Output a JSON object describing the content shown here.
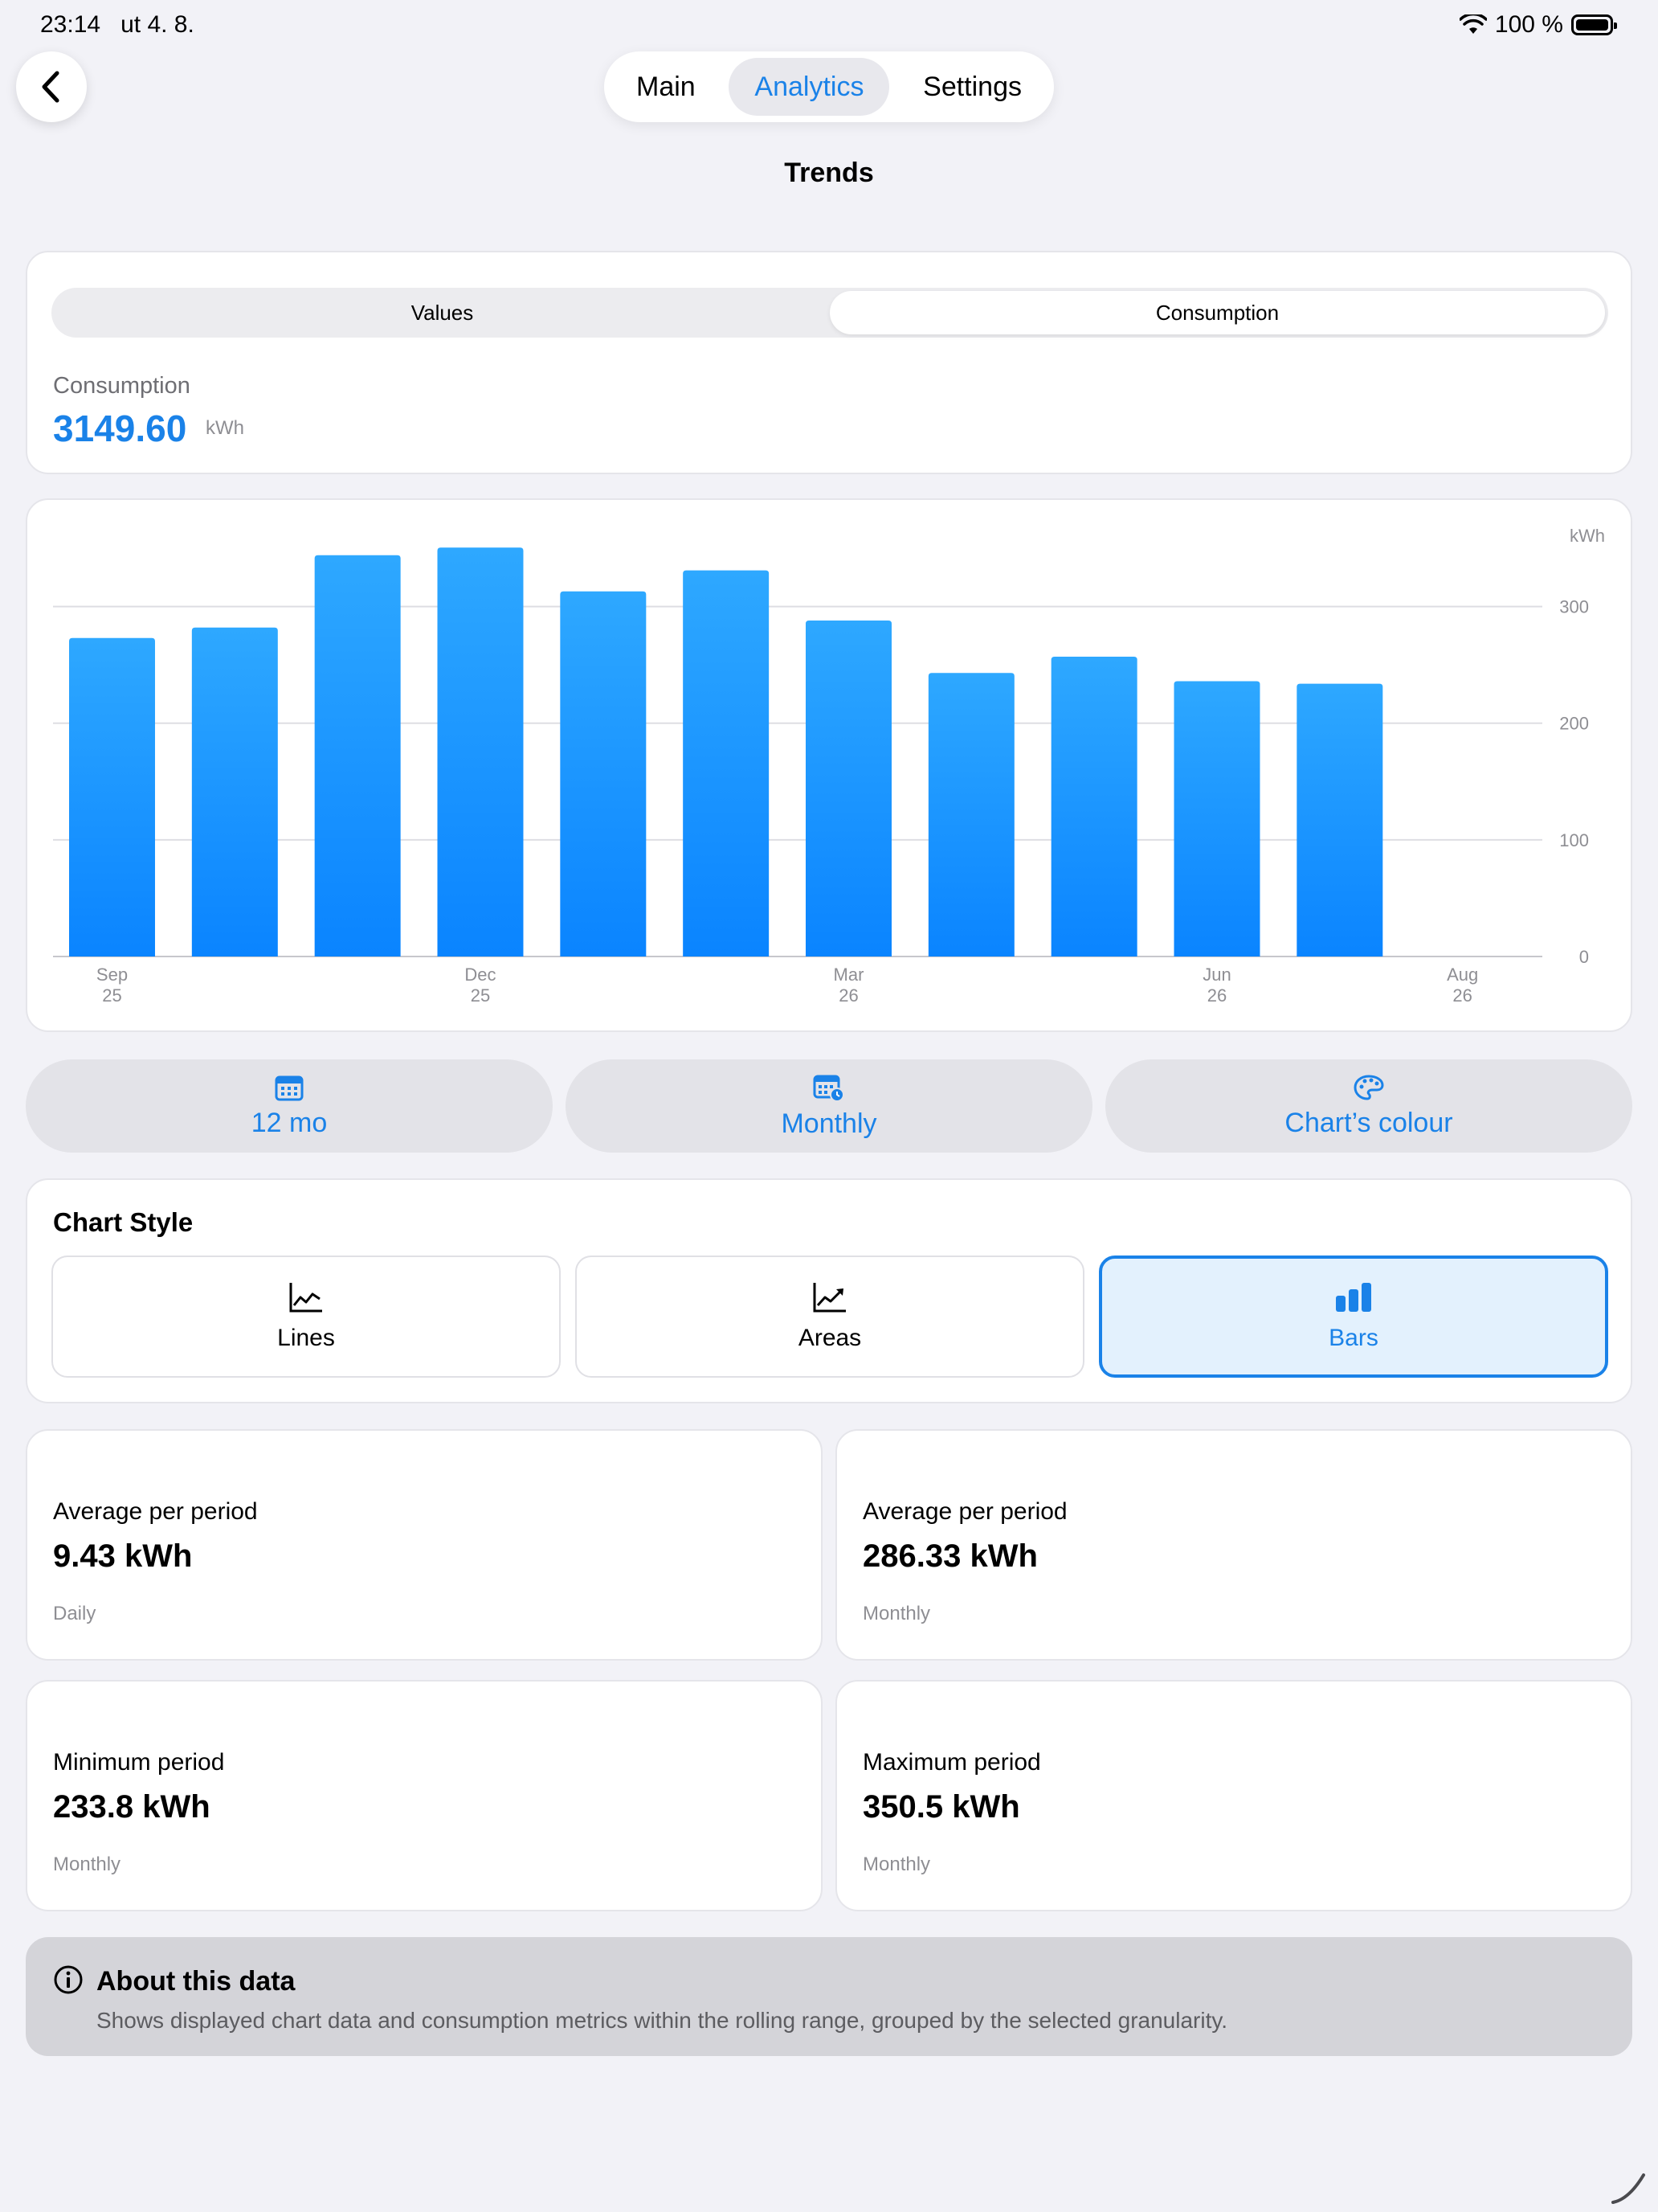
{
  "status_bar": {
    "time": "23:14",
    "date": "ut 4. 8.",
    "battery": "100 %"
  },
  "nav": {
    "tabs": [
      {
        "label": "Main"
      },
      {
        "label": "Analytics"
      },
      {
        "label": "Settings"
      }
    ],
    "active_tab": "Analytics"
  },
  "page_title": "Trends",
  "summary": {
    "segments": [
      {
        "label": "Values"
      },
      {
        "label": "Consumption"
      }
    ],
    "active_segment": "Consumption",
    "label": "Consumption",
    "value": "3149.60",
    "unit": "kWh"
  },
  "chart_data": {
    "type": "bar",
    "unit_label": "kWh",
    "categories": [
      "Sep 25",
      "Oct 25",
      "Nov 25",
      "Dec 25",
      "Jan 26",
      "Feb 26",
      "Mar 26",
      "Apr 26",
      "May 26",
      "Jun 26",
      "Jul 26",
      "Aug 26"
    ],
    "values": [
      273,
      282,
      344,
      350.5,
      313,
      331,
      288,
      243,
      257,
      236,
      233.8,
      null
    ],
    "x_tick_labels": [
      {
        "month": "Sep",
        "year": "25",
        "index": 0
      },
      {
        "month": "Dec",
        "year": "25",
        "index": 3
      },
      {
        "month": "Mar",
        "year": "26",
        "index": 6
      },
      {
        "month": "Jun",
        "year": "26",
        "index": 9
      },
      {
        "month": "Aug",
        "year": "26",
        "index": 11
      }
    ],
    "y_ticks": [
      0,
      100,
      200,
      300
    ],
    "ylim": [
      0,
      350
    ],
    "grid": true,
    "y_axis_side": "right",
    "bar_color_top": "#2ea8ff",
    "bar_color_bottom": "#0a84ff"
  },
  "options": {
    "range": {
      "label": "12 mo",
      "icon": "calendar-icon"
    },
    "granularity": {
      "label": "Monthly",
      "icon": "calendar-clock-icon"
    },
    "colour": {
      "label": "Chart’s colour",
      "icon": "palette-icon"
    }
  },
  "chart_style": {
    "title": "Chart Style",
    "styles": [
      {
        "label": "Lines",
        "icon": "line-chart-icon"
      },
      {
        "label": "Areas",
        "icon": "area-chart-icon"
      },
      {
        "label": "Bars",
        "icon": "bar-chart-icon"
      }
    ],
    "active": "Bars"
  },
  "stats": {
    "avg_daily": {
      "label": "Average per period",
      "value": "9.43 kWh",
      "sub": "Daily"
    },
    "avg_monthly": {
      "label": "Average per period",
      "value": "286.33 kWh",
      "sub": "Monthly"
    },
    "min": {
      "label": "Minimum period",
      "value": "233.8 kWh",
      "sub": "Monthly"
    },
    "max": {
      "label": "Maximum period",
      "value": "350.5 kWh",
      "sub": "Monthly"
    }
  },
  "about": {
    "title": "About this data",
    "text": "Shows displayed chart data and consumption metrics within the rolling range, grouped by the selected granularity."
  },
  "colors": {
    "accent": "#1a82e8",
    "background": "#f2f2f7"
  }
}
